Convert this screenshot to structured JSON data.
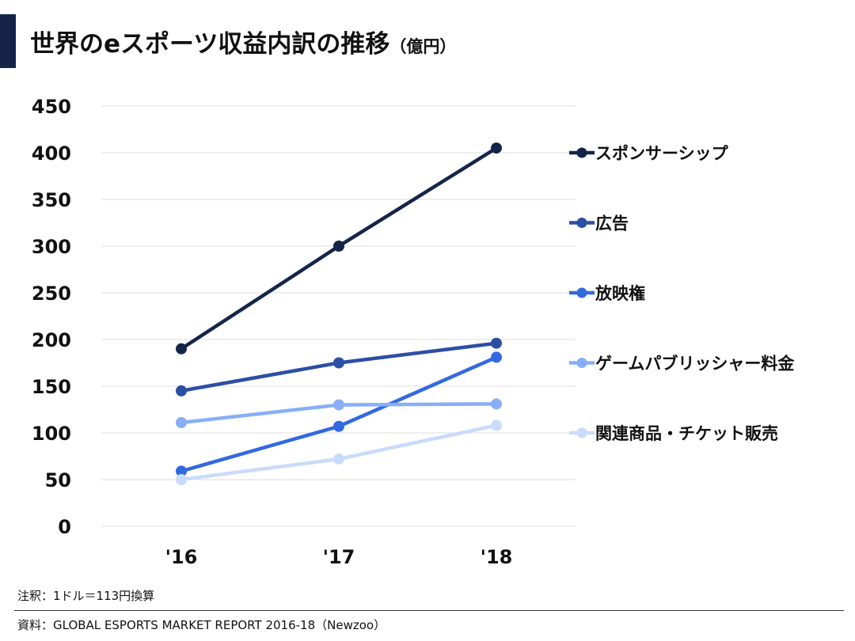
{
  "title": "世界のeスポーツ収益内訳の推移",
  "title_unit": "（億円）",
  "note": "注釈：1ドル＝113円換算",
  "source": "資料：GLOBAL ESPORTS MARKET REPORT 2016-18（Newzoo）",
  "chart_data": {
    "type": "line",
    "title": "世界のeスポーツ収益内訳の推移",
    "categories": [
      "'16",
      "'17",
      "'18"
    ],
    "ylim": [
      0,
      450
    ],
    "yticks": [
      0,
      50,
      100,
      150,
      200,
      250,
      300,
      350,
      400,
      450
    ],
    "grid": true,
    "legend": "right",
    "series": [
      {
        "name": "スポンサーシップ",
        "color": "#15254a",
        "values": [
          190,
          300,
          405
        ]
      },
      {
        "name": "広告",
        "color": "#2c4fa3",
        "values": [
          145,
          175,
          196
        ]
      },
      {
        "name": "放映権",
        "color": "#3369e0",
        "values": [
          59,
          107,
          181
        ]
      },
      {
        "name": "ゲームパブリッシャー料金",
        "color": "#88aef8",
        "values": [
          111,
          130,
          131
        ]
      },
      {
        "name": "関連商品・チケット販売",
        "color": "#c9dbfb",
        "values": [
          50,
          72,
          108
        ]
      }
    ]
  }
}
